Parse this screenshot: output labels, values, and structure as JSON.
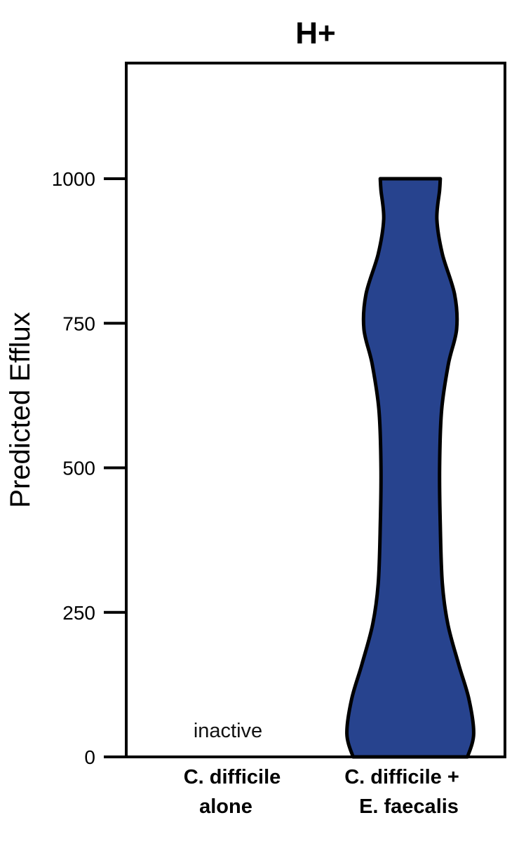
{
  "chart_data": {
    "type": "violin",
    "title": "H+",
    "xlabel": "",
    "ylabel": "Predicted Efflux",
    "ylim": [
      0,
      1200
    ],
    "yticks": [
      0,
      250,
      500,
      750,
      1000
    ],
    "categories": [
      {
        "line1": "C. difficile",
        "line2": "alone"
      },
      {
        "line1": "C. difficile +",
        "line2": "E. faecalis"
      }
    ],
    "series": [
      {
        "name": "C. difficile alone",
        "status": "inactive",
        "annotation": "inactive",
        "profile": []
      },
      {
        "name": "C. difficile + E. faecalis",
        "color": "#27438e",
        "min": 0,
        "max": 1000,
        "profile": [
          {
            "y": 0,
            "width": 0.84
          },
          {
            "y": 40,
            "width": 0.93
          },
          {
            "y": 100,
            "width": 0.86
          },
          {
            "y": 160,
            "width": 0.71
          },
          {
            "y": 230,
            "width": 0.55
          },
          {
            "y": 300,
            "width": 0.47
          },
          {
            "y": 400,
            "width": 0.44
          },
          {
            "y": 500,
            "width": 0.43
          },
          {
            "y": 600,
            "width": 0.46
          },
          {
            "y": 680,
            "width": 0.56
          },
          {
            "y": 740,
            "width": 0.68
          },
          {
            "y": 800,
            "width": 0.65
          },
          {
            "y": 870,
            "width": 0.47
          },
          {
            "y": 930,
            "width": 0.39
          },
          {
            "y": 980,
            "width": 0.43
          },
          {
            "y": 1000,
            "width": 0.44
          }
        ]
      }
    ]
  }
}
